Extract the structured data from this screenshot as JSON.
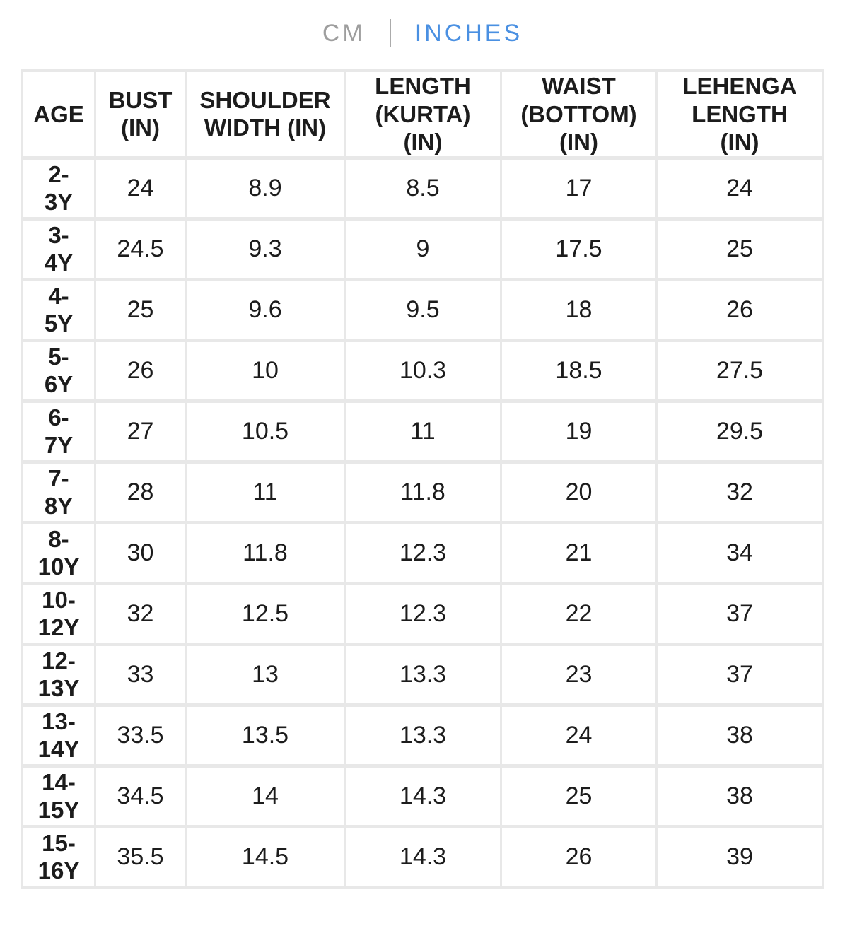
{
  "unit_toggle": {
    "cm_label": "CM",
    "inches_label": "INCHES",
    "active_unit": "INCHES"
  },
  "colors": {
    "active_unit": "#4a90e2",
    "inactive_unit": "#9e9e9e",
    "grid": "#e8e8e8",
    "text": "#1c1c1c"
  },
  "size_chart": {
    "columns": {
      "age": "AGE",
      "bust": "BUST\n(IN)",
      "shoulder": "SHOULDER\nWIDTH (IN)",
      "length": "LENGTH\n(KURTA)\n(IN)",
      "waist": "WAIST\n(BOTTOM)\n(IN)",
      "lehenga": "LEHENGA\nLENGTH\n(IN)"
    },
    "rows": [
      {
        "age": "2-\n3Y",
        "bust_in": "24",
        "shoulder_width_in": "8.9",
        "length_kurta_in": "8.5",
        "waist_bottom_in": "17",
        "lehenga_length_in": "24"
      },
      {
        "age": "3-\n4Y",
        "bust_in": "24.5",
        "shoulder_width_in": "9.3",
        "length_kurta_in": "9",
        "waist_bottom_in": "17.5",
        "lehenga_length_in": "25"
      },
      {
        "age": "4-\n5Y",
        "bust_in": "25",
        "shoulder_width_in": "9.6",
        "length_kurta_in": "9.5",
        "waist_bottom_in": "18",
        "lehenga_length_in": "26"
      },
      {
        "age": "5-\n6Y",
        "bust_in": "26",
        "shoulder_width_in": "10",
        "length_kurta_in": "10.3",
        "waist_bottom_in": "18.5",
        "lehenga_length_in": "27.5"
      },
      {
        "age": "6-\n7Y",
        "bust_in": "27",
        "shoulder_width_in": "10.5",
        "length_kurta_in": "11",
        "waist_bottom_in": "19",
        "lehenga_length_in": "29.5"
      },
      {
        "age": "7-\n8Y",
        "bust_in": "28",
        "shoulder_width_in": "11",
        "length_kurta_in": "11.8",
        "waist_bottom_in": "20",
        "lehenga_length_in": "32"
      },
      {
        "age": "8-\n10Y",
        "bust_in": "30",
        "shoulder_width_in": "11.8",
        "length_kurta_in": "12.3",
        "waist_bottom_in": "21",
        "lehenga_length_in": "34"
      },
      {
        "age": "10-\n12Y",
        "bust_in": "32",
        "shoulder_width_in": "12.5",
        "length_kurta_in": "12.3",
        "waist_bottom_in": "22",
        "lehenga_length_in": "37"
      },
      {
        "age": "12-\n13Y",
        "bust_in": "33",
        "shoulder_width_in": "13",
        "length_kurta_in": "13.3",
        "waist_bottom_in": "23",
        "lehenga_length_in": "37"
      },
      {
        "age": "13-\n14Y",
        "bust_in": "33.5",
        "shoulder_width_in": "13.5",
        "length_kurta_in": "13.3",
        "waist_bottom_in": "24",
        "lehenga_length_in": "38"
      },
      {
        "age": "14-\n15Y",
        "bust_in": "34.5",
        "shoulder_width_in": "14",
        "length_kurta_in": "14.3",
        "waist_bottom_in": "25",
        "lehenga_length_in": "38"
      },
      {
        "age": "15-\n16Y",
        "bust_in": "35.5",
        "shoulder_width_in": "14.5",
        "length_kurta_in": "14.3",
        "waist_bottom_in": "26",
        "lehenga_length_in": "39"
      }
    ]
  }
}
